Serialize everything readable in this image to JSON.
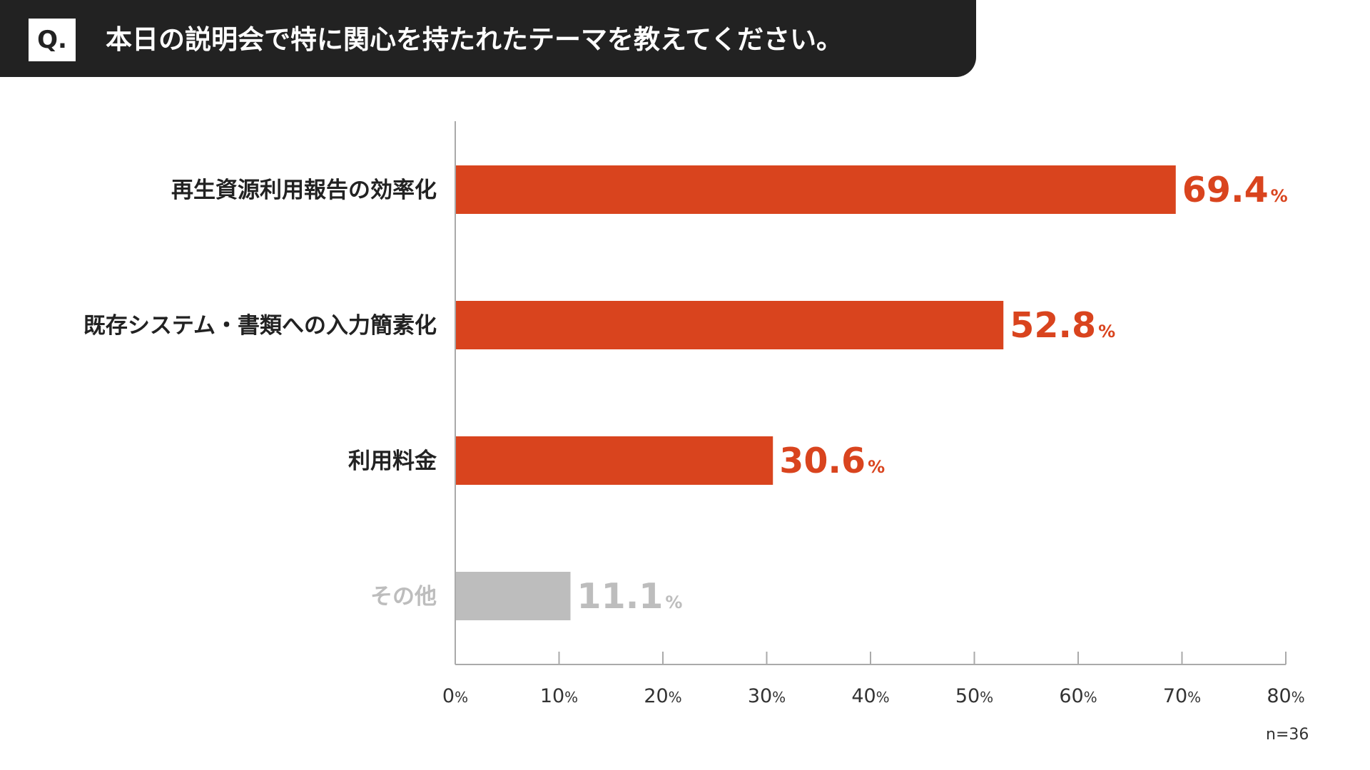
{
  "header": {
    "badge": "Q.",
    "question": "本日の説明会で特に関心を持たれたテーマを教えてください。"
  },
  "chart_data": {
    "type": "bar",
    "orientation": "horizontal",
    "categories": [
      "再生資源利用報告の効率化",
      "既存システム・書類への入力簡素化",
      "利用料金",
      "その他"
    ],
    "values": [
      69.4,
      52.8,
      30.6,
      11.1
    ],
    "value_labels": [
      "69.4",
      "52.8",
      "30.6",
      "11.1"
    ],
    "value_unit": "%",
    "xlim": [
      0,
      80
    ],
    "ticks": [
      "0",
      "10",
      "20",
      "30",
      "40",
      "50",
      "60",
      "70",
      "80"
    ],
    "tick_unit": "%",
    "grid": false,
    "bar_colors": [
      "#d9441e",
      "#d9441e",
      "#d9441e",
      "#bdbdbd"
    ],
    "label_colors": [
      "#222222",
      "#222222",
      "#222222",
      "#bdbdbd"
    ],
    "value_colors": [
      "#d9441e",
      "#d9441e",
      "#d9441e",
      "#bdbdbd"
    ]
  },
  "note": "n=36"
}
